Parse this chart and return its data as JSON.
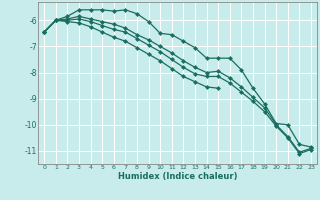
{
  "xlabel": "Humidex (Indice chaleur)",
  "ylabel": "",
  "bg_color": "#c8ecec",
  "grid_color": "#b0d8d8",
  "line_color": "#1a6e60",
  "marker": "D",
  "markersize": 2.5,
  "linewidth": 0.9,
  "xlim": [
    -0.5,
    23.5
  ],
  "ylim": [
    -11.5,
    -5.3
  ],
  "yticks": [
    -6,
    -7,
    -8,
    -9,
    -10,
    -11
  ],
  "xticks": [
    0,
    1,
    2,
    3,
    4,
    5,
    6,
    7,
    8,
    9,
    10,
    11,
    12,
    13,
    14,
    15,
    16,
    17,
    18,
    19,
    20,
    21,
    22,
    23
  ],
  "line1_x": [
    0,
    1,
    2,
    3,
    4,
    5,
    6,
    7,
    8,
    9,
    10,
    11,
    12,
    13,
    14,
    15,
    16,
    17,
    18,
    19,
    20,
    21,
    22,
    23
  ],
  "line1_y": [
    -6.45,
    -6.0,
    -5.85,
    -5.6,
    -5.6,
    -5.6,
    -5.65,
    -5.6,
    -5.75,
    -6.05,
    -6.5,
    -6.55,
    -6.8,
    -7.05,
    -7.45,
    -7.45,
    -7.45,
    -7.9,
    -8.6,
    -9.2,
    -9.95,
    -10.0,
    -10.75,
    -10.85
  ],
  "line2_x": [
    0,
    1,
    2,
    3,
    4,
    5,
    6,
    7,
    8,
    9,
    10,
    11,
    12,
    13,
    14,
    15,
    16,
    17,
    18,
    19,
    20,
    21,
    22,
    23
  ],
  "line2_y": [
    -6.45,
    -6.0,
    -5.95,
    -5.85,
    -5.95,
    -6.05,
    -6.15,
    -6.3,
    -6.55,
    -6.75,
    -7.0,
    -7.25,
    -7.55,
    -7.8,
    -8.0,
    -7.95,
    -8.2,
    -8.55,
    -8.95,
    -9.35,
    -10.0,
    -10.45,
    -11.05,
    -10.9
  ],
  "line3_x": [
    0,
    1,
    2,
    3,
    4,
    5,
    6,
    7,
    8,
    9,
    10,
    11,
    12,
    13,
    14,
    15,
    16,
    17,
    18,
    19,
    20,
    21,
    22,
    23
  ],
  "line3_y": [
    -6.45,
    -6.0,
    -6.0,
    -5.95,
    -6.05,
    -6.2,
    -6.35,
    -6.45,
    -6.7,
    -6.95,
    -7.2,
    -7.5,
    -7.8,
    -8.05,
    -8.15,
    -8.15,
    -8.4,
    -8.75,
    -9.1,
    -9.5,
    -10.05,
    -10.5,
    -11.1,
    -10.95
  ],
  "line4_x": [
    0,
    1,
    2,
    3,
    4,
    5,
    6,
    7,
    8,
    9,
    10,
    11,
    12,
    13,
    14,
    15
  ],
  "line4_y": [
    -6.45,
    -6.0,
    -6.05,
    -6.1,
    -6.25,
    -6.45,
    -6.65,
    -6.8,
    -7.05,
    -7.3,
    -7.55,
    -7.85,
    -8.15,
    -8.35,
    -8.55,
    -8.6
  ]
}
